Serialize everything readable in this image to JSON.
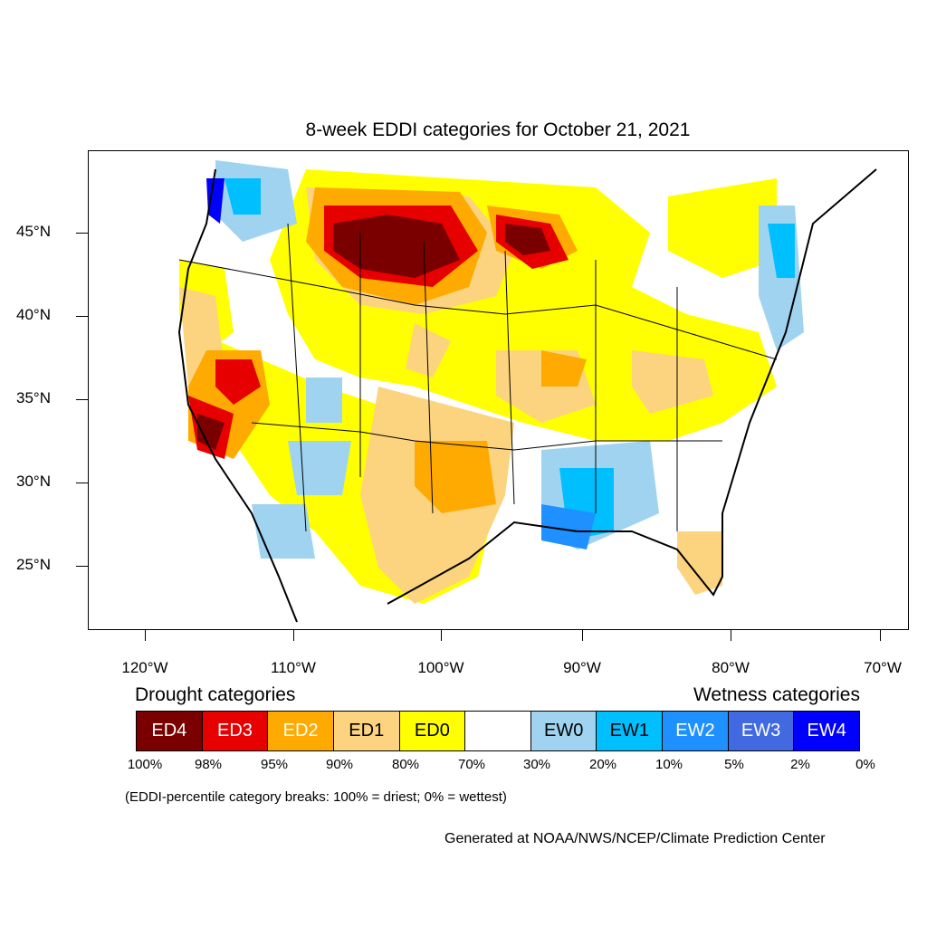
{
  "title": "8-week EDDI categories for October 21, 2021",
  "lat_labels": [
    "45°N",
    "40°N",
    "35°N",
    "30°N",
    "25°N"
  ],
  "lon_labels": [
    "120°W",
    "110°W",
    "100°W",
    "90°W",
    "80°W",
    "70°W"
  ],
  "legend": {
    "drought_heading": "Drought categories",
    "wetness_heading": "Wetness categories",
    "categories": [
      {
        "label": "ED4",
        "color": "#7a0000",
        "text_color": "#ffffff"
      },
      {
        "label": "ED3",
        "color": "#e60000",
        "text_color": "#ffffff"
      },
      {
        "label": "ED2",
        "color": "#ffaa00",
        "text_color": "#ffffff"
      },
      {
        "label": "ED1",
        "color": "#fcd37f",
        "text_color": "#000000"
      },
      {
        "label": "ED0",
        "color": "#ffff00",
        "text_color": "#000000"
      },
      {
        "label": "",
        "color": "#ffffff",
        "text_color": "#000000"
      },
      {
        "label": "EW0",
        "color": "#9fd3f0",
        "text_color": "#000000"
      },
      {
        "label": "EW1",
        "color": "#00bfff",
        "text_color": "#000000"
      },
      {
        "label": "EW2",
        "color": "#1e90ff",
        "text_color": "#ffffff"
      },
      {
        "label": "EW3",
        "color": "#4169e1",
        "text_color": "#ffffff"
      },
      {
        "label": "EW4",
        "color": "#0000ff",
        "text_color": "#ffffff"
      }
    ],
    "percent_breaks": [
      "100%",
      "98%",
      "95%",
      "90%",
      "80%",
      "70%",
      "30%",
      "20%",
      "10%",
      "5%",
      "2%",
      "0%"
    ]
  },
  "note": "(EDDI-percentile category breaks: 100% = driest; 0% = wettest)",
  "credit": "Generated at NOAA/NWS/NCEP/Climate Prediction Center"
}
